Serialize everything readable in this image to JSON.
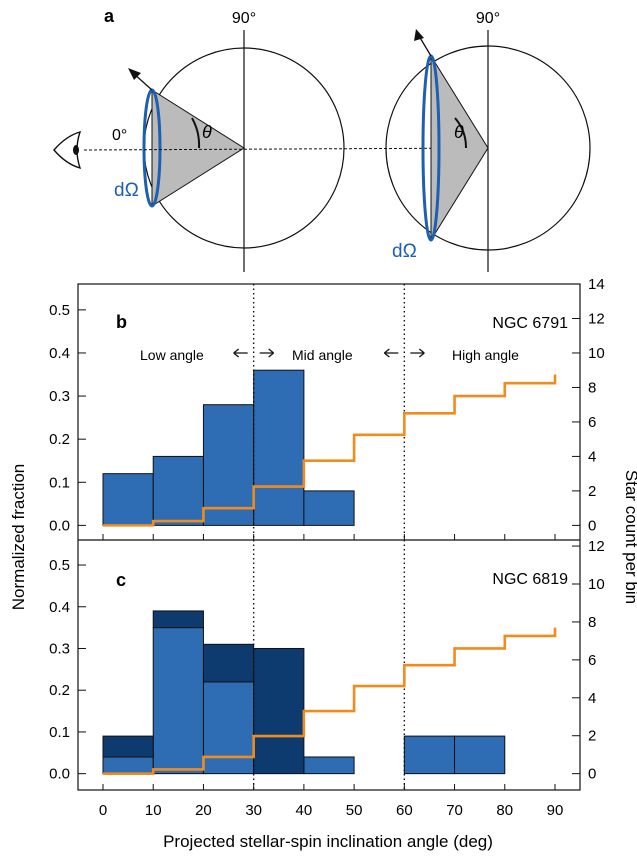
{
  "panel_a": {
    "label": "a",
    "left_circle": {
      "top_label": "90°",
      "zero_label": "0°",
      "angle_label": "θ",
      "solid_angle_label": "dΩ"
    },
    "right_circle": {
      "top_label": "90°",
      "angle_label": "θ",
      "solid_angle_label": "dΩ"
    },
    "colors": {
      "ring": "#1f5fb0",
      "cone": "#bbbbbb"
    }
  },
  "chart_data": [
    {
      "type": "bar",
      "panel_label": "b",
      "cluster_label": "NGC 6791",
      "region_labels": [
        "Low angle",
        "Mid angle",
        "High angle"
      ],
      "region_boundaries": [
        30,
        60
      ],
      "bin_edges": [
        0,
        10,
        20,
        30,
        40,
        50,
        60,
        70,
        80,
        90
      ],
      "series": [
        {
          "values": [
            0.12,
            0.16,
            0.28,
            0.36,
            0.08,
            0,
            0,
            0,
            0
          ],
          "color": "#2e6db4"
        }
      ],
      "reference_line": {
        "x": [
          0,
          10,
          20,
          30,
          40,
          50,
          60,
          70,
          80,
          90
        ],
        "y": [
          0.0,
          0.01,
          0.04,
          0.09,
          0.15,
          0.21,
          0.26,
          0.3,
          0.33,
          0.35
        ],
        "color": "#f08c1e"
      },
      "ylim": [
        -0.02,
        0.56
      ],
      "yticks": [
        0.0,
        0.1,
        0.2,
        0.3,
        0.4,
        0.5
      ],
      "ytick_labels": [
        "0.0",
        "0.1",
        "0.2",
        "0.3",
        "0.4",
        "0.5"
      ],
      "right_ticks": [
        0,
        2,
        4,
        6,
        8,
        10,
        12,
        14
      ],
      "right_per_unit": 25
    },
    {
      "type": "bar",
      "panel_label": "c",
      "cluster_label": "NGC 6819",
      "region_boundaries": [
        30,
        60
      ],
      "bin_edges": [
        0,
        10,
        20,
        30,
        40,
        50,
        60,
        70,
        80,
        90
      ],
      "series": [
        {
          "values": [
            0.04,
            0.35,
            0.22,
            0,
            0.04,
            0,
            0.09,
            0.09,
            0
          ],
          "color": "#2e6db4"
        },
        {
          "values": [
            0.05,
            0.04,
            0.09,
            0.3,
            0,
            0,
            0,
            0,
            0
          ],
          "color": "#0d3b70"
        }
      ],
      "reference_line": {
        "x": [
          0,
          10,
          20,
          30,
          40,
          50,
          60,
          70,
          80,
          90
        ],
        "y": [
          0.0,
          0.01,
          0.04,
          0.09,
          0.15,
          0.21,
          0.26,
          0.3,
          0.33,
          0.35
        ],
        "color": "#f08c1e"
      },
      "ylim": [
        -0.02,
        0.56
      ],
      "yticks": [
        0.0,
        0.1,
        0.2,
        0.3,
        0.4,
        0.5
      ],
      "ytick_labels": [
        "0.0",
        "0.1",
        "0.2",
        "0.3",
        "0.4",
        "0.5"
      ],
      "right_ticks": [
        0,
        2,
        4,
        6,
        8,
        10,
        12
      ],
      "right_per_unit": 22,
      "xticks": [
        0,
        10,
        20,
        30,
        40,
        50,
        60,
        70,
        80,
        90
      ]
    }
  ],
  "axes": {
    "xlabel": "Projected stellar-spin inclination angle (deg)",
    "ylabel_left": "Normalized fraction",
    "ylabel_right": "Star count per bin"
  }
}
